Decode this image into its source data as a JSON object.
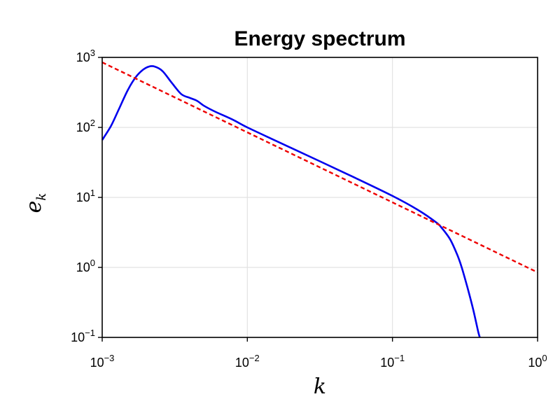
{
  "chart_data": {
    "type": "line",
    "title": "Energy spectrum",
    "xlabel": "k",
    "ylabel_base": "e",
    "ylabel_sub": "k",
    "x_scale": "log",
    "y_scale": "log",
    "xlim": [
      0.001,
      1
    ],
    "ylim": [
      0.1,
      1000
    ],
    "grid": true,
    "legend": "none",
    "x_ticks": [
      {
        "value": 0.001,
        "base": "10",
        "exp": "−3"
      },
      {
        "value": 0.01,
        "base": "10",
        "exp": "−2"
      },
      {
        "value": 0.1,
        "base": "10",
        "exp": "−1"
      },
      {
        "value": 1,
        "base": "10",
        "exp": "0"
      }
    ],
    "y_ticks": [
      {
        "value": 0.1,
        "base": "10",
        "exp": "−1"
      },
      {
        "value": 1,
        "base": "10",
        "exp": "0"
      },
      {
        "value": 10,
        "base": "10",
        "exp": "1"
      },
      {
        "value": 100,
        "base": "10",
        "exp": "2"
      },
      {
        "value": 1000,
        "base": "10",
        "exp": "3"
      }
    ],
    "series": [
      {
        "style": "solid",
        "color": "#0000ee",
        "points": [
          [
            0.001,
            66
          ],
          [
            0.00115,
            105
          ],
          [
            0.0013,
            180
          ],
          [
            0.0015,
            340
          ],
          [
            0.0017,
            520
          ],
          [
            0.0019,
            660
          ],
          [
            0.0021,
            740
          ],
          [
            0.0023,
            740
          ],
          [
            0.0026,
            640
          ],
          [
            0.003,
            440
          ],
          [
            0.0035,
            300
          ],
          [
            0.004,
            265
          ],
          [
            0.0045,
            240
          ],
          [
            0.005,
            205
          ],
          [
            0.006,
            168
          ],
          [
            0.008,
            128
          ],
          [
            0.01,
            100
          ],
          [
            0.02,
            51
          ],
          [
            0.05,
            21
          ],
          [
            0.1,
            10.5
          ],
          [
            0.15,
            6.6
          ],
          [
            0.2,
            4.4
          ],
          [
            0.22,
            3.6
          ],
          [
            0.25,
            2.5
          ],
          [
            0.28,
            1.5
          ],
          [
            0.3,
            1.0
          ],
          [
            0.33,
            0.5
          ],
          [
            0.36,
            0.25
          ],
          [
            0.39,
            0.12
          ],
          [
            0.4,
            0.1
          ]
        ]
      },
      {
        "style": "dashed",
        "color": "#ee0000",
        "points": [
          [
            0.001,
            850
          ],
          [
            1,
            0.85
          ]
        ]
      }
    ]
  }
}
